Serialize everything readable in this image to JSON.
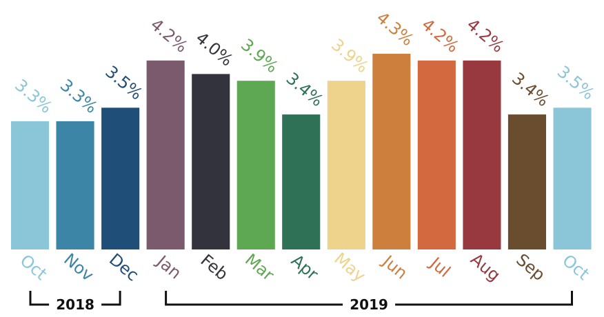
{
  "chart_data": {
    "type": "bar",
    "categories": [
      "Oct",
      "Nov",
      "Dec",
      "Jan",
      "Feb",
      "Mar",
      "Apr",
      "May",
      "Jun",
      "Jul",
      "Aug",
      "Sep",
      "Oct"
    ],
    "values": [
      3.3,
      3.3,
      3.5,
      4.2,
      4.0,
      3.9,
      3.4,
      3.9,
      4.3,
      4.2,
      4.2,
      3.4,
      3.5
    ],
    "value_labels": [
      "3.3%",
      "3.3%",
      "3.5%",
      "4.2%",
      "4.0%",
      "3.9%",
      "3.4%",
      "3.9%",
      "4.3%",
      "4.2%",
      "4.2%",
      "3.4%",
      "3.5%"
    ],
    "colors": [
      "#8BC6D8",
      "#3C85A6",
      "#1F4E79",
      "#7B5A6E",
      "#33333D",
      "#5FA853",
      "#2F7157",
      "#EDD38C",
      "#CD7F3E",
      "#D3693E",
      "#98393F",
      "#6A4C2E",
      "#8BC6D8"
    ],
    "ylim": [
      1.4,
      4.3
    ],
    "grid": false,
    "legend": "none",
    "title": "",
    "xlabel": "",
    "ylabel": "",
    "year_groups": [
      {
        "label": "2018",
        "start": 0,
        "end": 2
      },
      {
        "label": "2019",
        "start": 3,
        "end": 12
      }
    ]
  }
}
